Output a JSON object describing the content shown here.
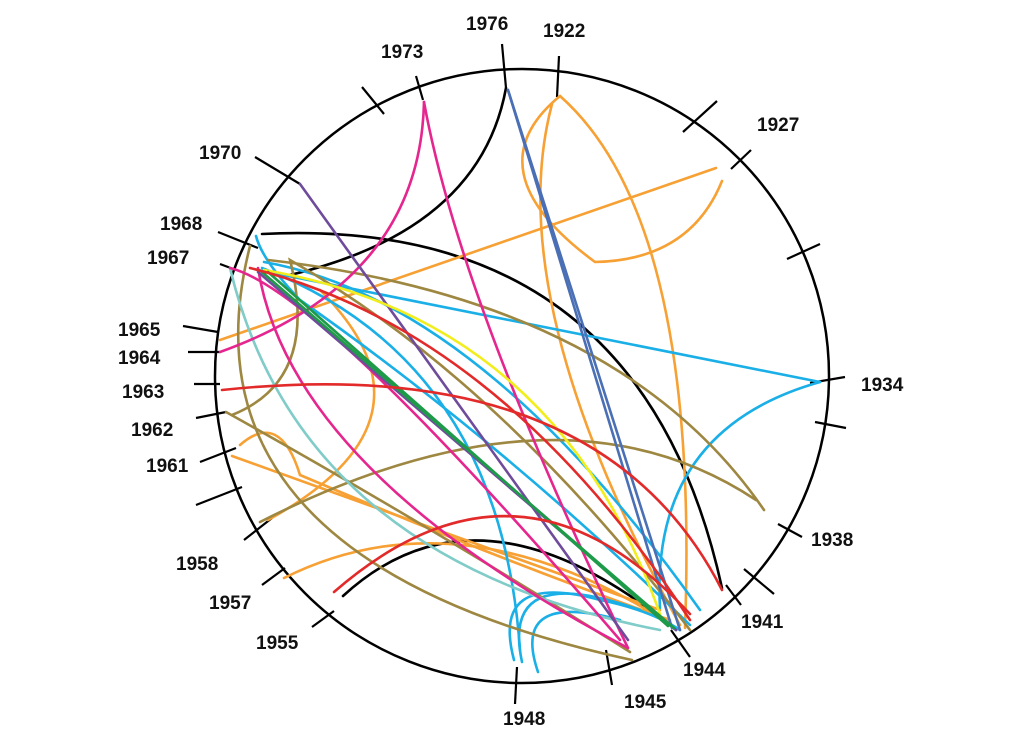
{
  "diagram": {
    "type": "circular arc connection diagram",
    "year_labels": [
      "1976",
      "1922",
      "1973",
      "1927",
      "1970",
      "1968",
      "1967",
      "1965",
      "1964",
      "1963",
      "1962",
      "1961",
      "1934",
      "1938",
      "1958",
      "1957",
      "1955",
      "1941",
      "1944",
      "1945",
      "1948"
    ],
    "colors": {
      "circle": "#000000",
      "orange": "#F7A033",
      "blue": "#1AAFE6",
      "olive": "#9D8741",
      "magenta": "#E5268F",
      "purple": "#6F4C9B",
      "steel_blue": "#4A6FB5",
      "yellow": "#F2EE1D",
      "green": "#1E9B48",
      "red": "#E32A2A",
      "teal": "#7FCCC8",
      "black": "#000000"
    }
  }
}
